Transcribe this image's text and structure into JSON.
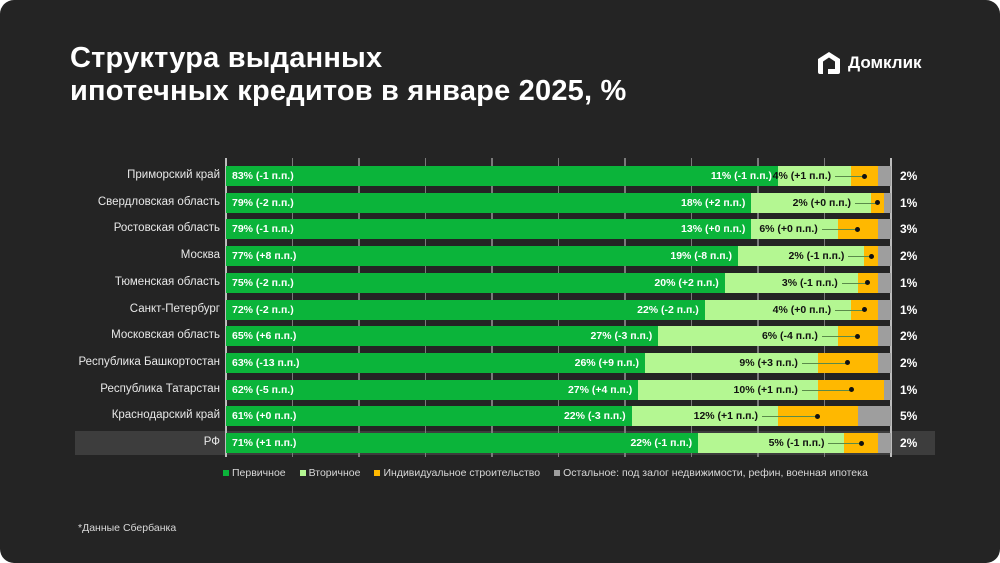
{
  "header": {
    "title_line1": "Структура выданных",
    "title_line2": "ипотечных кредитов в январе 2025, %",
    "logo_text": "Домклик"
  },
  "colors": {
    "primary": "#0bb43a",
    "secondary": "#b4f792",
    "individual": "#ffb800",
    "other": "#9e9e9e",
    "background": "#242424",
    "highlight_row": "#3d3d3d"
  },
  "legend": {
    "primary": "Первичное",
    "secondary": "Вторичное",
    "individual": "Индивидуальное строительство",
    "other": "Остальное: под залог недвижимости, рефин, военная ипотека"
  },
  "footnote": "*Данные Сбербанка",
  "chart_data": {
    "type": "bar",
    "orientation": "horizontal",
    "stacked": true,
    "title": "Структура выданных ипотечных кредитов в январе 2025, %",
    "xlabel": "",
    "ylabel": "",
    "xlim": [
      0,
      100
    ],
    "grid": true,
    "legend_position": "bottom",
    "categories": [
      "Приморский край",
      "Свердловская область",
      "Ростовская область",
      "Москва",
      "Тюменская область",
      "Санкт-Петербург",
      "Московская область",
      "Республика Башкортостан",
      "Республика Татарстан",
      "Краснодарский край",
      "РФ"
    ],
    "series": [
      {
        "name": "Первичное",
        "values": [
          83,
          79,
          79,
          77,
          75,
          72,
          65,
          63,
          62,
          61,
          71
        ],
        "changes": [
          "-1 п.п.",
          "-2 п.п.",
          "-1 п.п.",
          "+8 п.п.",
          "-2 п.п.",
          "-2 п.п.",
          "+6 п.п.",
          "-13 п.п.",
          "-5 п.п.",
          "+0 п.п.",
          "+1 п.п."
        ]
      },
      {
        "name": "Вторичное",
        "values": [
          11,
          18,
          13,
          19,
          20,
          22,
          27,
          26,
          27,
          22,
          22
        ],
        "changes": [
          "-1 п.п.",
          "+2 п.п.",
          "+0 п.п.",
          "-8 п.п.",
          "+2 п.п.",
          "-2 п.п.",
          "-3 п.п.",
          "+9 п.п.",
          "+4 п.п.",
          "-3 п.п.",
          "-1 п.п."
        ]
      },
      {
        "name": "Индивидуальное строительство",
        "values": [
          4,
          2,
          6,
          2,
          3,
          4,
          6,
          9,
          10,
          12,
          5
        ],
        "changes": [
          "+1 п.п.",
          "+0 п.п.",
          "+0 п.п.",
          "-1 п.п.",
          "-1 п.п.",
          "+0 п.п.",
          "-4 п.п.",
          "+3 п.п.",
          "+1 п.п.",
          "+1 п.п.",
          "-1 п.п."
        ]
      },
      {
        "name": "Остальное: под залог недвижимости, рефин, военная ипотека",
        "values": [
          2,
          1,
          3,
          2,
          1,
          1,
          2,
          2,
          1,
          5,
          2
        ]
      }
    ]
  },
  "rows": [
    {
      "region": "Приморский край",
      "primary": "83% (-1 п.п.)",
      "secondary": "11% (-1 п.п.)",
      "individual": "4% (+1 п.п.)",
      "other": "2%"
    },
    {
      "region": "Свердловская область",
      "primary": "79% (-2 п.п.)",
      "secondary": "18% (+2 п.п.)",
      "individual": "2% (+0 п.п.)",
      "other": "1%"
    },
    {
      "region": "Ростовская область",
      "primary": "79% (-1 п.п.)",
      "secondary": "13% (+0 п.п.)",
      "individual": "6% (+0 п.п.)",
      "other": "3%"
    },
    {
      "region": "Москва",
      "primary": "77% (+8 п.п.)",
      "secondary": "19% (-8 п.п.)",
      "individual": "2% (-1 п.п.)",
      "other": "2%"
    },
    {
      "region": "Тюменская область",
      "primary": "75% (-2 п.п.)",
      "secondary": "20% (+2 п.п.)",
      "individual": "3% (-1 п.п.)",
      "other": "1%"
    },
    {
      "region": "Санкт-Петербург",
      "primary": "72% (-2 п.п.)",
      "secondary": "22% (-2 п.п.)",
      "individual": "4% (+0 п.п.)",
      "other": "1%"
    },
    {
      "region": "Московская область",
      "primary": "65% (+6 п.п.)",
      "secondary": "27% (-3 п.п.)",
      "individual": "6% (-4 п.п.)",
      "other": "2%"
    },
    {
      "region": "Республика Башкортостан",
      "primary": "63% (-13 п.п.)",
      "secondary": "26% (+9 п.п.)",
      "individual": "9% (+3 п.п.)",
      "other": "2%"
    },
    {
      "region": "Республика Татарстан",
      "primary": "62% (-5 п.п.)",
      "secondary": "27% (+4 п.п.)",
      "individual": "10% (+1 п.п.)",
      "other": "1%"
    },
    {
      "region": "Краснодарский край",
      "primary": "61% (+0 п.п.)",
      "secondary": "22% (-3 п.п.)",
      "individual": "12% (+1 п.п.)",
      "other": "5%"
    },
    {
      "region": "РФ",
      "primary": "71% (+1 п.п.)",
      "secondary": "22% (-1 п.п.)",
      "individual": "5% (-1 п.п.)",
      "other": "2%",
      "highlight": true
    }
  ]
}
